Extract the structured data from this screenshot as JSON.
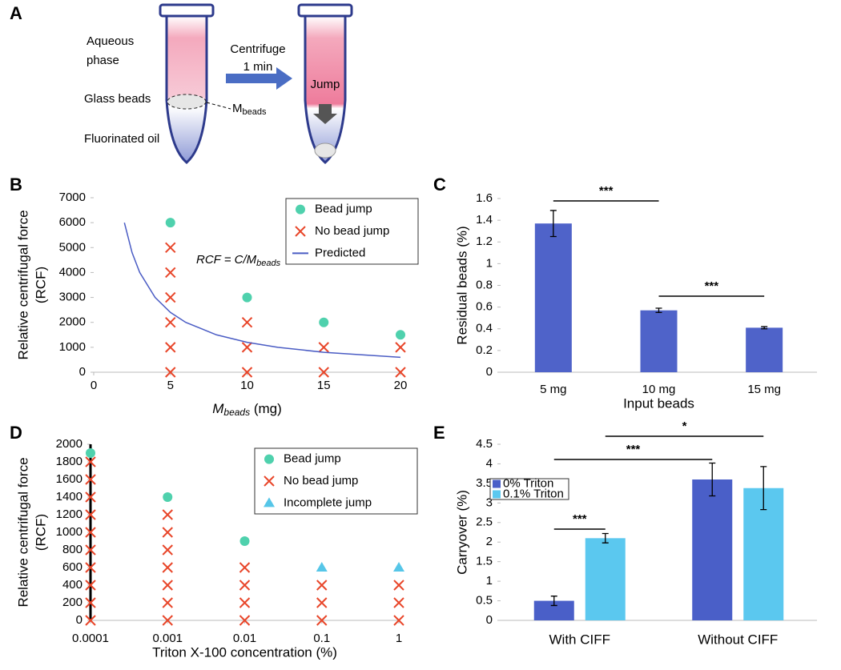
{
  "diagram": {
    "label": "A",
    "aqueous": [
      "Aqueous",
      "phase"
    ],
    "beads": "Glass beads",
    "mass": {
      "main": "M",
      "sub": "beads"
    },
    "oil": "Fluorinated oil",
    "step": [
      "Centrifuge",
      "1 min"
    ],
    "jump": "Jump"
  },
  "chart_data": [
    {
      "label": "B",
      "type": "scatter",
      "xlabel": {
        "main": "M",
        "sub": "beads",
        "rest": " (mg)"
      },
      "ylabel": [
        "Relative centrifugal force",
        "(RCF)"
      ],
      "annotation": {
        "main": "RCF = C/M",
        "sub": "beads"
      },
      "xlim": [
        0,
        20
      ],
      "xticks": [
        0,
        5,
        10,
        15,
        20
      ],
      "ylim": [
        0,
        7000
      ],
      "yticks": [
        0,
        1000,
        2000,
        3000,
        4000,
        5000,
        6000,
        7000
      ],
      "legend": "upper right",
      "series": [
        {
          "name": "Bead jump",
          "marker": "circle",
          "color": "#4fd1ad",
          "x": [
            5,
            10,
            15,
            20
          ],
          "values": [
            6000,
            3000,
            2000,
            1500
          ]
        },
        {
          "name": "No bead jump",
          "marker": "x",
          "color": "#e8462a",
          "x": [
            5,
            5,
            5,
            5,
            5,
            5,
            10,
            10,
            10,
            15,
            15,
            20,
            20
          ],
          "values": [
            0,
            1000,
            2000,
            3000,
            4000,
            5000,
            0,
            1000,
            2000,
            0,
            1000,
            0,
            1000
          ]
        },
        {
          "name": "Predicted",
          "marker": "line",
          "color": "#4a5cc4",
          "x": [
            2,
            2.5,
            3,
            4,
            5,
            6,
            8,
            10,
            12,
            15,
            20
          ],
          "values": [
            6000,
            4800,
            4000,
            3000,
            2400,
            2000,
            1500,
            1200,
            1000,
            800,
            600
          ]
        }
      ]
    },
    {
      "label": "C",
      "type": "bar",
      "xlabel": "Input beads",
      "ylabel": [
        "Residual beads (%)"
      ],
      "categories": [
        "5 mg",
        "10 mg",
        "15 mg"
      ],
      "ylim": [
        0,
        1.6
      ],
      "yticks": [
        0,
        0.2,
        0.4,
        0.6,
        0.8,
        1,
        1.2,
        1.4,
        1.6
      ],
      "series": [
        {
          "color": "#4f63c9",
          "values": [
            1.37,
            0.57,
            0.41
          ],
          "errors": [
            0.12,
            0.02,
            0.01
          ]
        }
      ],
      "significance": [
        "***",
        "***"
      ]
    },
    {
      "label": "D",
      "type": "scatter",
      "xscale": "log",
      "xlabel": "Triton X-100 concentration (%)",
      "ylabel": [
        "Relative centrifugal force",
        "(RCF)"
      ],
      "xlim": [
        0.0001,
        1
      ],
      "xticks": [
        0.0001,
        0.001,
        0.01,
        0.1,
        1
      ],
      "ylim": [
        0,
        2000
      ],
      "yticks": [
        0,
        200,
        400,
        600,
        800,
        1000,
        1200,
        1400,
        1600,
        1800,
        2000
      ],
      "legend": "upper right",
      "series": [
        {
          "name": "Bead jump",
          "marker": "circle",
          "color": "#4fd1ad",
          "x": [
            0.0001,
            0.001,
            0.01
          ],
          "values": [
            1900,
            1400,
            900
          ]
        },
        {
          "name": "No bead jump",
          "marker": "x",
          "color": "#e8462a",
          "x": [
            0.0001,
            0.0001,
            0.0001,
            0.0001,
            0.0001,
            0.0001,
            0.0001,
            0.0001,
            0.0001,
            0.0001,
            0.001,
            0.001,
            0.001,
            0.001,
            0.001,
            0.001,
            0.001,
            0.01,
            0.01,
            0.01,
            0.01,
            0.1,
            0.1,
            0.1,
            1,
            1,
            1
          ],
          "values": [
            0,
            200,
            400,
            600,
            800,
            1000,
            1200,
            1400,
            1600,
            1800,
            0,
            200,
            400,
            600,
            800,
            1000,
            1200,
            0,
            200,
            400,
            600,
            0,
            200,
            400,
            0,
            200,
            400
          ]
        },
        {
          "name": "Incomplete jump",
          "marker": "triangle",
          "color": "#56c6e8",
          "x": [
            0.1,
            1
          ],
          "values": [
            600,
            600
          ]
        }
      ]
    },
    {
      "label": "E",
      "type": "bar",
      "ylabel": [
        "Carryover (%)"
      ],
      "categories": [
        "With CIFF",
        "Without CIFF"
      ],
      "ylim": [
        0,
        4.5
      ],
      "yticks": [
        0,
        0.5,
        1,
        1.5,
        2,
        2.5,
        3,
        3.5,
        4,
        4.5
      ],
      "legend": "upper left",
      "series": [
        {
          "name": "0% Triton",
          "color": "#4a5fc8",
          "values": [
            0.5,
            3.6
          ],
          "errors": [
            0.12,
            0.42
          ]
        },
        {
          "name": "0.1% Triton",
          "color": "#5bc8ef",
          "values": [
            2.1,
            3.38
          ],
          "errors": [
            0.12,
            0.55
          ]
        }
      ],
      "significance": [
        "***",
        "***",
        "*"
      ]
    }
  ]
}
